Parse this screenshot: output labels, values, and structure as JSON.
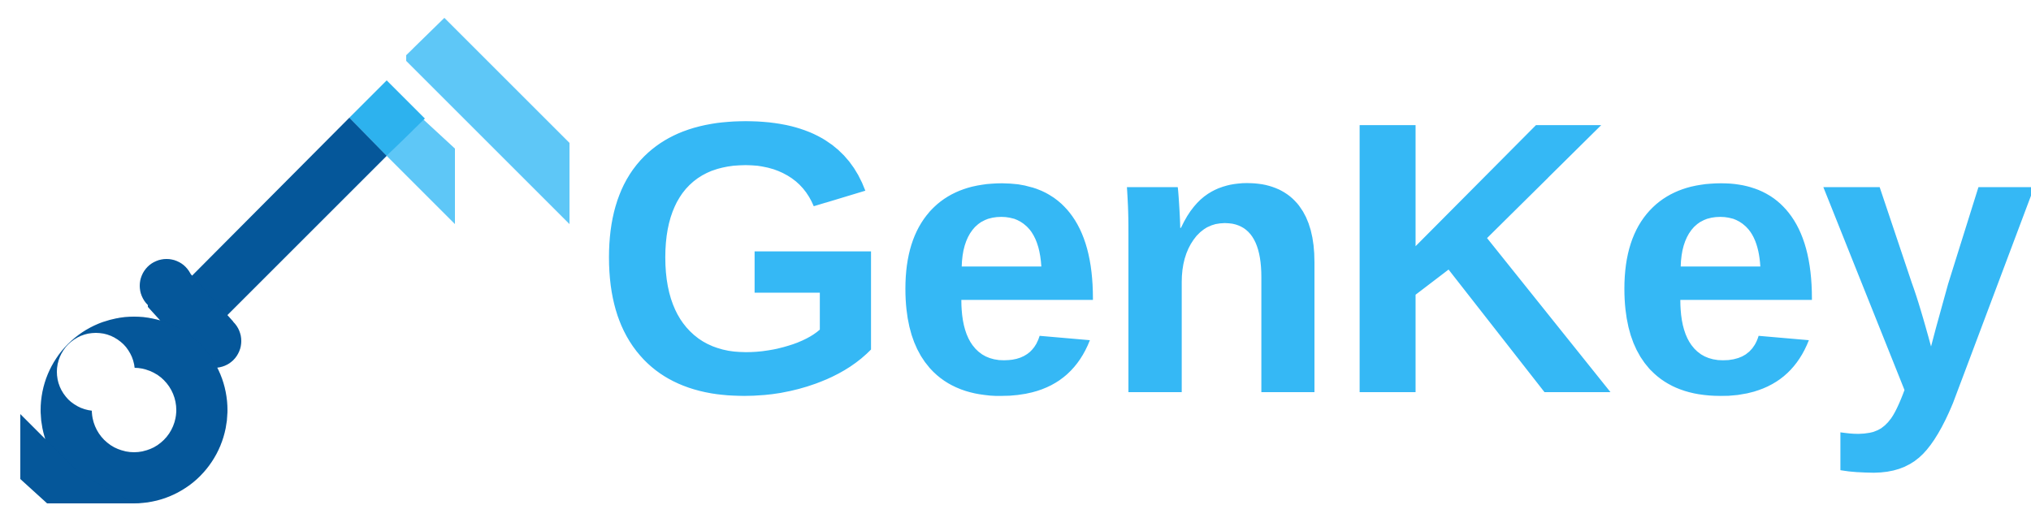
{
  "brand": {
    "name": "GenKeys",
    "colors": {
      "text": "#35B8F5",
      "key_dark": "#05579A",
      "key_mid": "#2DB2EE",
      "key_light": "#5EC7F7"
    }
  }
}
